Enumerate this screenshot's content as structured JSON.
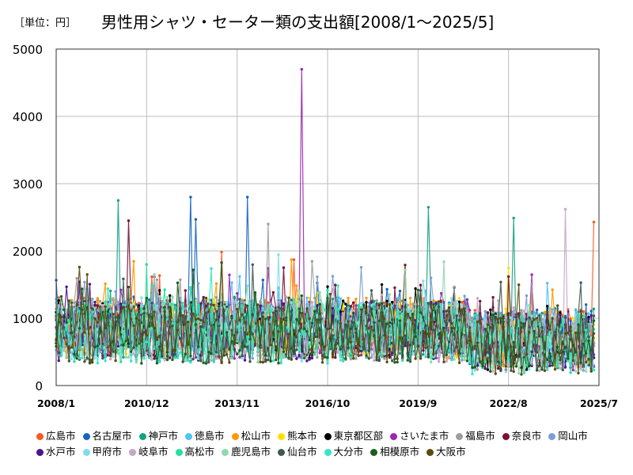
{
  "header": {
    "unit": "［単位：円］",
    "title": "男性用シャツ・セーター類の支出額[2008/1～2025/5]"
  },
  "chart_data": {
    "type": "line",
    "title": "男性用シャツ・セーター類の支出額[2008/1～2025/5]",
    "unit": "［単位：円］",
    "x_start": "2008/1",
    "x_end": "2025/7",
    "x_ticks": [
      "2008/1",
      "2010/12",
      "2013/11",
      "2016/10",
      "2019/9",
      "2022/8",
      "2025/7"
    ],
    "y_ticks": [
      "0",
      "1000",
      "2000",
      "3000",
      "4000",
      "5000"
    ],
    "ylim": [
      0,
      5000
    ],
    "grid": true,
    "legend_position": "bottom",
    "series": [
      {
        "name": "広島市",
        "color": "#ff5722"
      },
      {
        "name": "名古屋市",
        "color": "#1565c0"
      },
      {
        "name": "神戸市",
        "color": "#16a085"
      },
      {
        "name": "徳島市",
        "color": "#4fc3f7"
      },
      {
        "name": "松山市",
        "color": "#ff9800"
      },
      {
        "name": "熊本市",
        "color": "#ffe000"
      },
      {
        "name": "東京都区部",
        "color": "#000000"
      },
      {
        "name": "さいたま市",
        "color": "#9c27b0"
      },
      {
        "name": "福島市",
        "color": "#9e9e9e"
      },
      {
        "name": "奈良市",
        "color": "#7b1035"
      },
      {
        "name": "岡山市",
        "color": "#7b9fd4"
      },
      {
        "name": "水戸市",
        "color": "#4a148c"
      },
      {
        "name": "甲府市",
        "color": "#80deea"
      },
      {
        "name": "岐阜市",
        "color": "#c4a7c6"
      },
      {
        "name": "高松市",
        "color": "#26e0a0"
      },
      {
        "name": "鹿児島市",
        "color": "#8fd8b0"
      },
      {
        "name": "仙台市",
        "color": "#3d5a4c"
      },
      {
        "name": "大分市",
        "color": "#33e6c8"
      },
      {
        "name": "相模原市",
        "color": "#1b5e20"
      },
      {
        "name": "大阪市",
        "color": "#5d4a10"
      }
    ],
    "peaks": [
      {
        "series": "さいたま市",
        "x": "2015/12",
        "y": 4700
      },
      {
        "series": "名古屋市",
        "x": "2012/5",
        "y": 2800
      },
      {
        "series": "名古屋市",
        "x": "2014/3",
        "y": 2800
      },
      {
        "series": "神戸市",
        "x": "2010/1",
        "y": 2750
      },
      {
        "series": "神戸市",
        "x": "2020/1",
        "y": 2650
      },
      {
        "series": "岐阜市",
        "x": "2024/6",
        "y": 2620
      },
      {
        "series": "神戸市",
        "x": "2022/10",
        "y": 2490
      },
      {
        "series": "名古屋市",
        "x": "2012/7",
        "y": 2470
      },
      {
        "series": "奈良市",
        "x": "2010/5",
        "y": 2450
      },
      {
        "series": "広島市",
        "x": "2025/5",
        "y": 2430
      },
      {
        "series": "福島市",
        "x": "2014/11",
        "y": 2400
      }
    ]
  }
}
